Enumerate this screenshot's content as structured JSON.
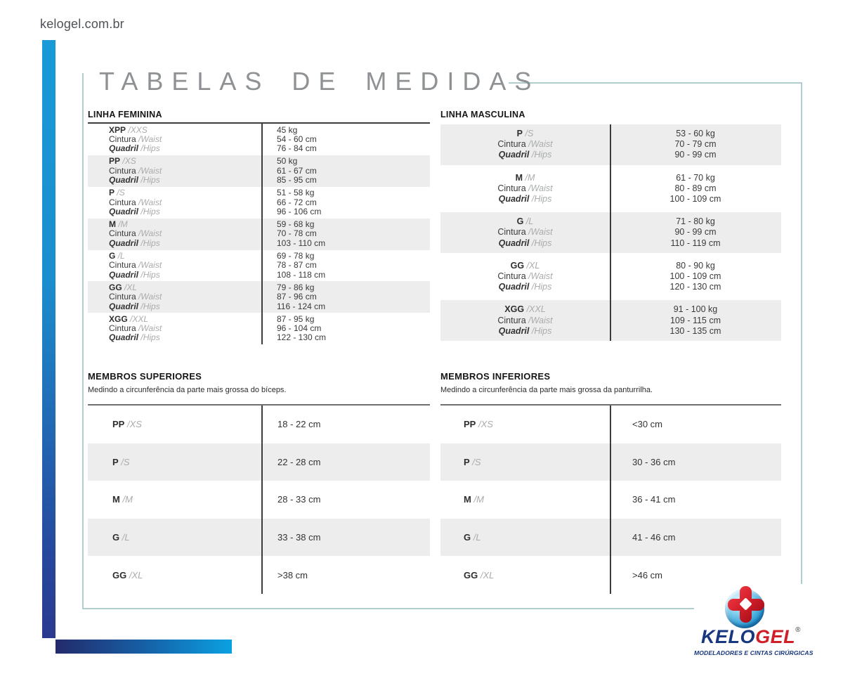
{
  "page": {
    "site_url": "kelogel.com.br",
    "title": "TABELAS DE MEDIDAS"
  },
  "labels": {
    "waist": "Cintura",
    "waist_en": "/Waist",
    "hips": "Quadril",
    "hips_en": "/Hips"
  },
  "feminina": {
    "header": "LINHA FEMININA",
    "rows": [
      {
        "size": "XPP",
        "size_en": "/XXS",
        "weight": "45 kg",
        "waist": "54 - 60 cm",
        "hips": "76 - 84 cm"
      },
      {
        "size": "PP",
        "size_en": "/XS",
        "weight": "50 kg",
        "waist": "61 - 67 cm",
        "hips": "85 - 95 cm"
      },
      {
        "size": "P",
        "size_en": "/S",
        "weight": "51 - 58 kg",
        "waist": "66 - 72 cm",
        "hips": "96 - 106 cm"
      },
      {
        "size": "M",
        "size_en": "/M",
        "weight": "59 - 68 kg",
        "waist": "70 - 78 cm",
        "hips": "103 - 110 cm"
      },
      {
        "size": "G",
        "size_en": "/L",
        "weight": "69 - 78 kg",
        "waist": "78 - 87 cm",
        "hips": "108 - 118 cm"
      },
      {
        "size": "GG",
        "size_en": "/XL",
        "weight": "79 - 86 kg",
        "waist": "87 - 96 cm",
        "hips": "116 - 124 cm"
      },
      {
        "size": "XGG",
        "size_en": "/XXL",
        "weight": "87 - 95 kg",
        "waist": "96 - 104 cm",
        "hips": "122 - 130 cm"
      }
    ]
  },
  "masculina": {
    "header": "LINHA MASCULINA",
    "rows": [
      {
        "size": "P",
        "size_en": "/S",
        "weight": "53 - 60 kg",
        "waist": "70 - 79 cm",
        "hips": "90 - 99 cm"
      },
      {
        "size": "M",
        "size_en": "/M",
        "weight": "61 - 70 kg",
        "waist": "80 - 89 cm",
        "hips": "100 - 109 cm"
      },
      {
        "size": "G",
        "size_en": "/L",
        "weight": "71 - 80 kg",
        "waist": "90 - 99 cm",
        "hips": "110 - 119 cm"
      },
      {
        "size": "GG",
        "size_en": "/XL",
        "weight": "80 - 90 kg",
        "waist": "100 - 109 cm",
        "hips": "120 - 130 cm"
      },
      {
        "size": "XGG",
        "size_en": "/XXL",
        "weight": "91 - 100 kg",
        "waist": "109 - 115 cm",
        "hips": "130 - 135 cm"
      }
    ]
  },
  "superiores": {
    "header": "MEMBROS SUPERIORES",
    "subtitle": "Medindo a circunferência da parte mais grossa do bíceps.",
    "rows": [
      {
        "size": "PP",
        "size_en": "/XS",
        "range": "18 - 22 cm"
      },
      {
        "size": "P",
        "size_en": "/S",
        "range": "22 - 28 cm"
      },
      {
        "size": "M",
        "size_en": "/M",
        "range": "28 - 33 cm"
      },
      {
        "size": "G",
        "size_en": "/L",
        "range": "33 - 38 cm"
      },
      {
        "size": "GG",
        "size_en": "/XL",
        "range": ">38 cm"
      }
    ]
  },
  "inferiores": {
    "header": "MEMBROS INFERIORES",
    "subtitle": "Medindo a circunferência da parte mais grossa da panturrilha.",
    "rows": [
      {
        "size": "PP",
        "size_en": "/XS",
        "range": "<30 cm"
      },
      {
        "size": "P",
        "size_en": "/S",
        "range": "30 - 36 cm"
      },
      {
        "size": "M",
        "size_en": "/M",
        "range": "36 - 41 cm"
      },
      {
        "size": "G",
        "size_en": "/L",
        "range": "41 - 46 cm"
      },
      {
        "size": "GG",
        "size_en": "/XL",
        "range": ">46 cm"
      }
    ]
  },
  "logo": {
    "brand_part1": "KELO",
    "brand_part2": "GEL",
    "registered": "®",
    "tagline": "MODELADORES E CINTAS CIRÚRGICAS"
  },
  "colors": {
    "frame_teal": "#b2cdcf",
    "bar_blue_bright": "#189ad6",
    "bar_navy": "#2b3a8f",
    "bar_cyan": "#0aa1e2",
    "row_shade": "#ededed",
    "logo_navy": "#17377f",
    "logo_red": "#cf2027",
    "title_gray": "#8f9294"
  }
}
